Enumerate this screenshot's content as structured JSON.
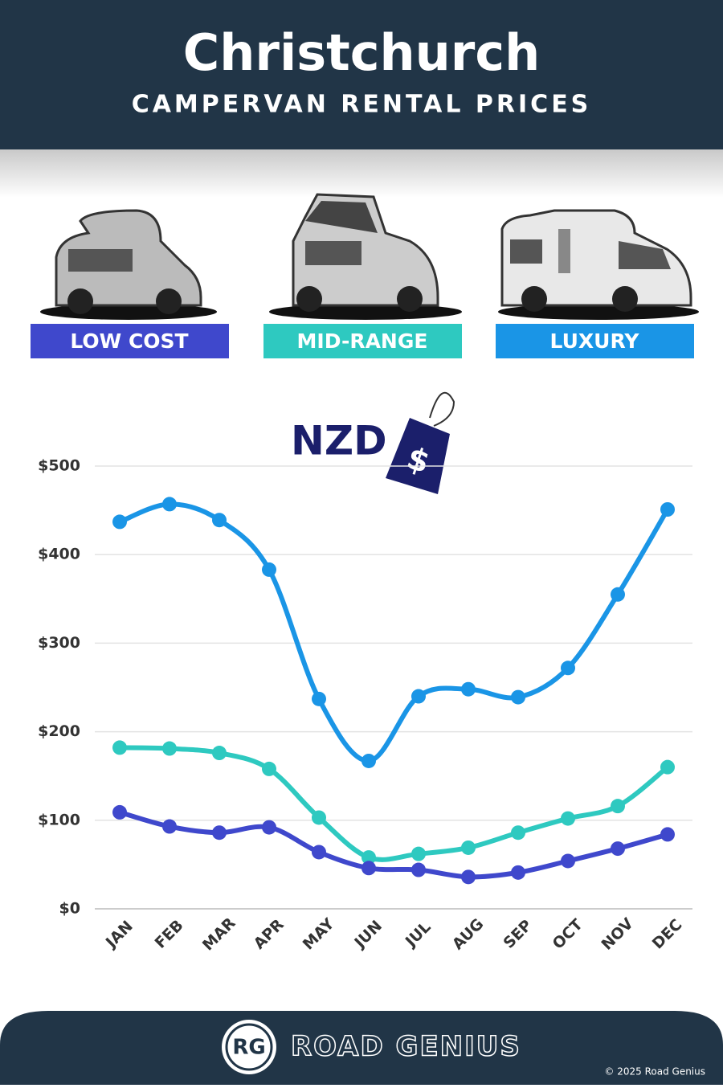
{
  "title": "Christchurch",
  "subtitle": "CAMPERVAN RENTAL PRICES",
  "currency": "NZD",
  "currency_symbol": "$",
  "chart_data": {
    "type": "line",
    "categories": [
      "JAN",
      "FEB",
      "MAR",
      "APR",
      "MAY",
      "JUN",
      "JUL",
      "AUG",
      "SEP",
      "OCT",
      "NOV",
      "DEC"
    ],
    "series": [
      {
        "name": "LOW COST",
        "color": "#3f48cc",
        "values": [
          109,
          93,
          86,
          92,
          64,
          46,
          44,
          36,
          41,
          54,
          68,
          84
        ]
      },
      {
        "name": "MID-RANGE",
        "color": "#2ec9c0",
        "values": [
          182,
          181,
          176,
          158,
          103,
          58,
          62,
          69,
          86,
          102,
          116,
          160
        ]
      },
      {
        "name": "LUXURY",
        "color": "#1a95e6",
        "values": [
          437,
          457,
          439,
          383,
          237,
          167,
          240,
          248,
          239,
          272,
          355,
          451
        ]
      }
    ],
    "ylim": [
      0,
      500
    ],
    "yticks": [
      {
        "value": 0,
        "label": "$0"
      },
      {
        "value": 100,
        "label": "$100"
      },
      {
        "value": 200,
        "label": "$200"
      },
      {
        "value": 300,
        "label": "$300"
      },
      {
        "value": 400,
        "label": "$400"
      },
      {
        "value": 500,
        "label": "$500"
      }
    ],
    "grid": true
  },
  "footer": {
    "logo": "RG",
    "brand": "ROAD GENIUS",
    "copyright": "© 2025 Road Genius"
  }
}
